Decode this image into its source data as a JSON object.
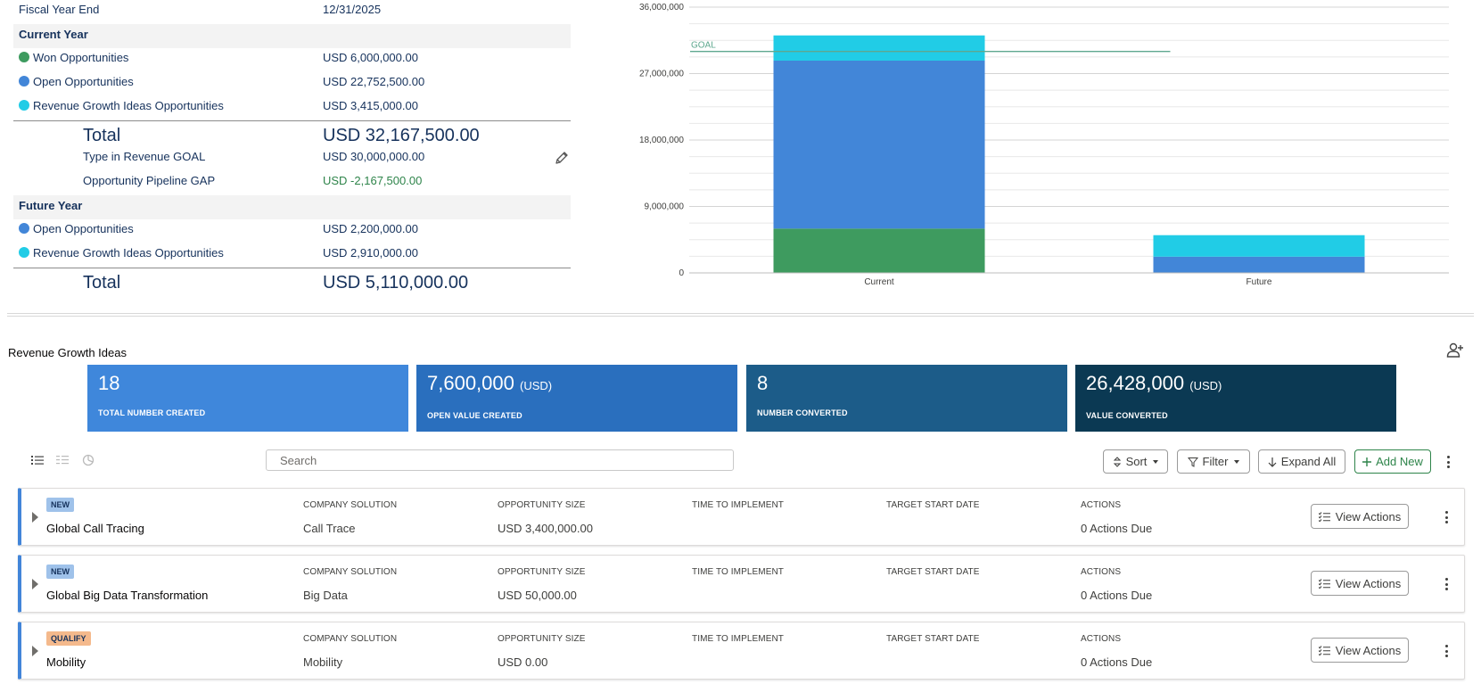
{
  "summary": {
    "fiscal_year_end_label": "Fiscal Year End",
    "fiscal_year_end_value": "12/31/2025",
    "current_year": {
      "heading": "Current Year",
      "rows": [
        {
          "label": "Won Opportunities",
          "value": "USD 6,000,000.00",
          "color": "#3e9b5f"
        },
        {
          "label": "Open Opportunities",
          "value": "USD 22,752,500.00",
          "color": "#4286d8"
        },
        {
          "label": "Revenue Growth Ideas Opportunities",
          "value": "USD 3,415,000.00",
          "color": "#21cce6"
        }
      ],
      "total_label": "Total",
      "total_value": "USD 32,167,500.00",
      "goal_label": "Type in Revenue GOAL",
      "goal_value": "USD 30,000,000.00",
      "gap_label": "Opportunity Pipeline GAP",
      "gap_value": "USD -2,167,500.00"
    },
    "future_year": {
      "heading": "Future Year",
      "rows": [
        {
          "label": "Open Opportunities",
          "value": "USD 2,200,000.00",
          "color": "#4286d8"
        },
        {
          "label": "Revenue Growth Ideas Opportunities",
          "value": "USD 2,910,000.00",
          "color": "#21cce6"
        }
      ],
      "total_label": "Total",
      "total_value": "USD 5,110,000.00"
    }
  },
  "chart_data": {
    "type": "bar",
    "stacked": true,
    "categories": [
      "Current",
      "Future"
    ],
    "series": [
      {
        "values": [
          6000000,
          0
        ],
        "color": "#3e9b5f"
      },
      {
        "values": [
          22752500,
          2200000
        ],
        "color": "#4286d8"
      },
      {
        "values": [
          3415000,
          2910000
        ],
        "color": "#21cce6"
      }
    ],
    "ylim": [
      0,
      36000000
    ],
    "yticks": [
      "0",
      "9,000,000",
      "18,000,000",
      "27,000,000",
      "36,000,000"
    ],
    "grid": true,
    "goal": {
      "label": "GOAL",
      "value": 30000000,
      "color": "#5fa88f"
    }
  },
  "rgi": {
    "title": "Revenue Growth Ideas",
    "kpis": [
      {
        "value": "18",
        "unit": "",
        "caption": "TOTAL NUMBER CREATED",
        "color": "#3f87db"
      },
      {
        "value": "7,600,000",
        "unit": "(USD)",
        "caption": "OPEN VALUE CREATED",
        "color": "#2a6fbe"
      },
      {
        "value": "8",
        "unit": "",
        "caption": "NUMBER CONVERTED",
        "color": "#1c5c89"
      },
      {
        "value": "26,428,000",
        "unit": "(USD)",
        "caption": "VALUE CONVERTED",
        "color": "#0b3953"
      }
    ],
    "search_placeholder": "Search",
    "toolbar": {
      "sort": "Sort",
      "filter": "Filter",
      "expand_all": "Expand All",
      "add_new": "Add New"
    },
    "column_headers": {
      "solution": "COMPANY SOLUTION",
      "size": "OPPORTUNITY SIZE",
      "time": "TIME TO IMPLEMENT",
      "start": "TARGET START DATE",
      "actions": "ACTIONS"
    },
    "view_actions_label": "View Actions",
    "items": [
      {
        "status": "NEW",
        "name": "Global Call Tracing",
        "solution": "Call Trace",
        "size": "USD 3,400,000.00",
        "actions": "0 Actions Due"
      },
      {
        "status": "NEW",
        "name": "Global Big Data Transformation",
        "solution": "Big Data",
        "size": "USD 50,000.00",
        "actions": "0 Actions Due"
      },
      {
        "status": "QUALIFY",
        "name": "Mobility",
        "solution": "Mobility",
        "size": "USD 0.00",
        "actions": "0 Actions Due"
      }
    ]
  }
}
